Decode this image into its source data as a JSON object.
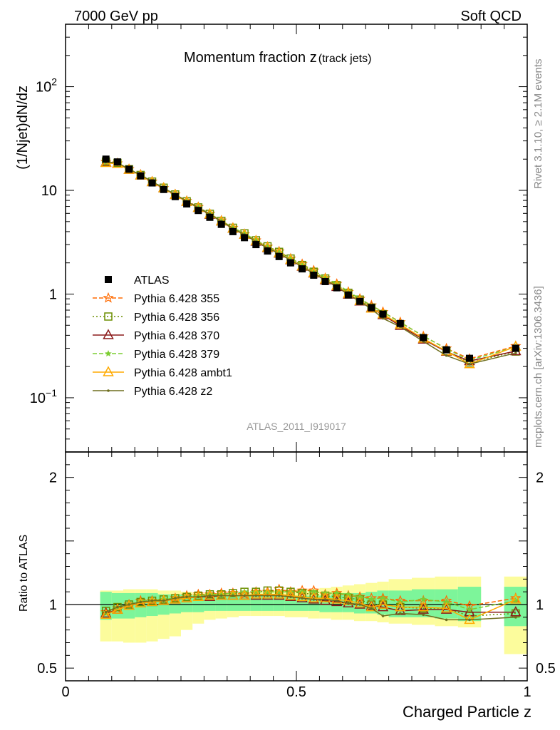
{
  "header": {
    "left": "7000 GeV pp",
    "right": "Soft QCD"
  },
  "side_labels": {
    "rivet": "Rivet 3.1.10, ≥ 2.1M events",
    "mcplots": "mcplots.cern.ch [arXiv:1306.3436]"
  },
  "colors": {
    "data": "#000000",
    "p355": "#ff6a00",
    "p356": "#6b8e00",
    "p370": "#8b1a1a",
    "p379": "#7ccd32",
    "ambt1": "#ffaa00",
    "z2": "#6e6e1e",
    "band_inner": "#7df59a",
    "band_outer": "#fcfc9c"
  },
  "chart_data": [
    {
      "type": "line",
      "title": "Momentum fraction z",
      "title_sub": "(track jets)",
      "ylabel": "(1/Njet)dN/dz",
      "analysis_tag": "ATLAS_2011_I919017",
      "yscale": "log",
      "xlim": [
        0,
        1
      ],
      "ylim": [
        0.03,
        400
      ],
      "y_ticks": [
        {
          "value": 0.1,
          "label": "10",
          "exp": "−1"
        },
        {
          "value": 1,
          "label": "1",
          "exp": ""
        },
        {
          "value": 10,
          "label": "10",
          "exp": ""
        },
        {
          "value": 100,
          "label": "10",
          "exp": "2"
        }
      ],
      "legend_position": "middle-left",
      "series": [
        {
          "name": "ATLAS",
          "marker": "square",
          "x": [
            0.0875,
            0.1125,
            0.1375,
            0.1625,
            0.1875,
            0.2125,
            0.2375,
            0.2625,
            0.2875,
            0.3125,
            0.3375,
            0.3625,
            0.3875,
            0.4125,
            0.4375,
            0.4625,
            0.4875,
            0.5125,
            0.5375,
            0.5625,
            0.5875,
            0.6125,
            0.6375,
            0.6625,
            0.6875,
            0.725,
            0.775,
            0.825,
            0.875,
            0.975
          ],
          "y": [
            20,
            18.8,
            16,
            13.8,
            11.8,
            10.2,
            8.7,
            7.4,
            6.4,
            5.5,
            4.7,
            4.0,
            3.5,
            3.0,
            2.6,
            2.3,
            2.0,
            1.75,
            1.52,
            1.32,
            1.15,
            0.98,
            0.85,
            0.74,
            0.64,
            0.52,
            0.38,
            0.29,
            0.24,
            0.3
          ]
        },
        {
          "name": "Pythia 6.428 355",
          "marker": "star",
          "ratio": [
            0.94,
            0.97,
            1.0,
            1.03,
            1.03,
            1.03,
            1.05,
            1.07,
            1.08,
            1.08,
            1.09,
            1.09,
            1.08,
            1.1,
            1.1,
            1.12,
            1.1,
            1.11,
            1.11,
            1.08,
            1.09,
            1.07,
            1.06,
            1.05,
            1.05,
            1.03,
            1.03,
            1.03,
            0.99,
            1.05
          ]
        },
        {
          "name": "Pythia 6.428 356",
          "marker": "open-square",
          "ratio": [
            0.95,
            0.98,
            1.0,
            1.02,
            1.03,
            1.04,
            1.05,
            1.06,
            1.07,
            1.08,
            1.08,
            1.09,
            1.1,
            1.1,
            1.11,
            1.11,
            1.1,
            1.09,
            1.08,
            1.07,
            1.06,
            1.05,
            1.04,
            1.0,
            1.0,
            0.98,
            0.97,
            0.97,
            0.91,
            0.93
          ]
        },
        {
          "name": "Pythia 6.428 370",
          "marker": "open-triangle",
          "ratio": [
            0.93,
            0.96,
            0.99,
            1.01,
            1.02,
            1.03,
            1.04,
            1.05,
            1.06,
            1.06,
            1.07,
            1.07,
            1.07,
            1.07,
            1.07,
            1.07,
            1.06,
            1.05,
            1.04,
            1.03,
            1.02,
            1.01,
            1.0,
            0.99,
            0.98,
            0.95,
            0.96,
            0.96,
            0.94,
            0.94
          ]
        },
        {
          "name": "Pythia 6.428 379",
          "marker": "small-star",
          "ratio": [
            0.94,
            0.98,
            1.0,
            1.03,
            1.03,
            1.04,
            1.05,
            1.06,
            1.07,
            1.08,
            1.08,
            1.09,
            1.1,
            1.1,
            1.1,
            1.1,
            1.1,
            1.1,
            1.1,
            1.09,
            1.09,
            1.08,
            1.06,
            1.04,
            1.05,
            1.02,
            1.04,
            1.02,
            0.96,
            1.03
          ]
        },
        {
          "name": "Pythia 6.428 ambt1",
          "marker": "open-triangle",
          "ratio": [
            0.92,
            0.96,
            0.99,
            1.01,
            1.02,
            1.03,
            1.04,
            1.05,
            1.06,
            1.07,
            1.07,
            1.07,
            1.07,
            1.08,
            1.08,
            1.08,
            1.07,
            1.06,
            1.05,
            1.05,
            1.04,
            1.03,
            1.01,
            0.98,
            1.0,
            0.98,
            0.98,
            0.97,
            0.88,
            1.04
          ]
        },
        {
          "name": "Pythia 6.428 z2",
          "marker": "dot",
          "ratio": [
            0.94,
            0.98,
            1.0,
            1.02,
            1.03,
            1.03,
            1.05,
            1.06,
            1.06,
            1.07,
            1.07,
            1.07,
            1.07,
            1.07,
            1.07,
            1.07,
            1.06,
            1.05,
            1.04,
            1.04,
            1.03,
            1.01,
            1.0,
            0.97,
            0.91,
            0.93,
            0.92,
            0.88,
            0.88,
            0.9
          ]
        }
      ]
    },
    {
      "type": "line",
      "ylabel": "Ratio to ATLAS",
      "xlabel": "Charged Particle z",
      "xlim": [
        0,
        1
      ],
      "ylim": [
        0.4,
        2.2
      ],
      "x_ticks": [
        {
          "value": 0,
          "label": "0"
        },
        {
          "value": 0.5,
          "label": "0.5"
        },
        {
          "value": 1,
          "label": "1"
        }
      ],
      "y_ticks": [
        {
          "value": 0.5,
          "label": "0.5"
        },
        {
          "value": 1,
          "label": "1"
        },
        {
          "value": 2,
          "label": "2"
        }
      ],
      "band_edges": [
        0.075,
        0.1,
        0.125,
        0.15,
        0.175,
        0.2,
        0.225,
        0.25,
        0.275,
        0.3,
        0.325,
        0.35,
        0.375,
        0.4,
        0.425,
        0.45,
        0.475,
        0.5,
        0.525,
        0.55,
        0.575,
        0.6,
        0.625,
        0.65,
        0.675,
        0.7,
        0.75,
        0.8,
        0.85,
        0.9,
        0.95,
        1.0
      ],
      "band_gap": [
        0.9,
        0.95
      ],
      "band_inner": [
        [
          0.88,
          1.1
        ],
        [
          0.89,
          1.09
        ],
        [
          0.89,
          1.09
        ],
        [
          0.9,
          1.09
        ],
        [
          0.91,
          1.09
        ],
        [
          0.92,
          1.08
        ],
        [
          0.93,
          1.08
        ],
        [
          0.94,
          1.08
        ],
        [
          0.94,
          1.07
        ],
        [
          0.95,
          1.07
        ],
        [
          0.95,
          1.07
        ],
        [
          0.95,
          1.07
        ],
        [
          0.95,
          1.07
        ],
        [
          0.95,
          1.07
        ],
        [
          0.95,
          1.07
        ],
        [
          0.95,
          1.07
        ],
        [
          0.95,
          1.07
        ],
        [
          0.95,
          1.07
        ],
        [
          0.95,
          1.07
        ],
        [
          0.94,
          1.07
        ],
        [
          0.94,
          1.08
        ],
        [
          0.94,
          1.09
        ],
        [
          0.93,
          1.09
        ],
        [
          0.93,
          1.1
        ],
        [
          0.92,
          1.11
        ],
        [
          0.9,
          1.11
        ],
        [
          0.9,
          1.12
        ],
        [
          0.89,
          1.12
        ],
        [
          0.87,
          1.14
        ],
        [
          0,
          0
        ],
        [
          0.83,
          1.14
        ]
      ],
      "band_outer": [
        [
          0.71,
          1.11
        ],
        [
          0.71,
          1.11
        ],
        [
          0.7,
          1.12
        ],
        [
          0.7,
          1.12
        ],
        [
          0.71,
          1.12
        ],
        [
          0.73,
          1.11
        ],
        [
          0.75,
          1.11
        ],
        [
          0.8,
          1.1
        ],
        [
          0.85,
          1.09
        ],
        [
          0.88,
          1.09
        ],
        [
          0.89,
          1.09
        ],
        [
          0.9,
          1.09
        ],
        [
          0.91,
          1.09
        ],
        [
          0.91,
          1.1
        ],
        [
          0.91,
          1.1
        ],
        [
          0.91,
          1.11
        ],
        [
          0.9,
          1.11
        ],
        [
          0.9,
          1.12
        ],
        [
          0.89,
          1.12
        ],
        [
          0.89,
          1.13
        ],
        [
          0.88,
          1.14
        ],
        [
          0.88,
          1.15
        ],
        [
          0.87,
          1.16
        ],
        [
          0.87,
          1.17
        ],
        [
          0.86,
          1.18
        ],
        [
          0.85,
          1.2
        ],
        [
          0.84,
          1.21
        ],
        [
          0.83,
          1.22
        ],
        [
          0.82,
          1.22
        ],
        [
          0,
          0
        ],
        [
          0.61,
          1.22
        ]
      ]
    }
  ]
}
